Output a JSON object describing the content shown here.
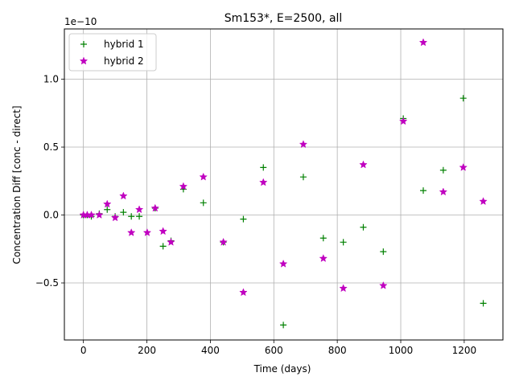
{
  "chart_data": {
    "type": "scatter",
    "title": "Sm153*, E=2500, all",
    "xlabel": "Time (days)",
    "ylabel": "Concentration Diff [conc - direct]",
    "y_scale_label": "1e−10",
    "xlim": [
      -60,
      1322
    ],
    "ylim": [
      -0.92,
      1.37
    ],
    "xticks": [
      0,
      200,
      400,
      600,
      800,
      1000,
      1200
    ],
    "xtick_labels": [
      "0",
      "200",
      "400",
      "600",
      "800",
      "1000",
      "1200"
    ],
    "yticks": [
      -0.5,
      0.0,
      0.5,
      1.0
    ],
    "ytick_labels": [
      "−0.5",
      "0.0",
      "0.5",
      "1.0"
    ],
    "grid": true,
    "legend_position": "upper-left",
    "series": [
      {
        "name": "hybrid 1",
        "marker": "plus",
        "color": "#008000",
        "points": [
          [
            0,
            0.0
          ],
          [
            12,
            0.0
          ],
          [
            25,
            -0.01
          ],
          [
            50,
            0.01
          ],
          [
            75,
            0.04
          ],
          [
            100,
            -0.01
          ],
          [
            126,
            0.02
          ],
          [
            151,
            -0.01
          ],
          [
            176,
            -0.01
          ],
          [
            226,
            0.05
          ],
          [
            251,
            -0.23
          ],
          [
            276,
            -0.19
          ],
          [
            315,
            0.19
          ],
          [
            378,
            0.09
          ],
          [
            441,
            -0.2
          ],
          [
            504,
            -0.03
          ],
          [
            567,
            0.35
          ],
          [
            630,
            -0.81
          ],
          [
            693,
            0.28
          ],
          [
            756,
            -0.17
          ],
          [
            819,
            -0.2
          ],
          [
            882,
            -0.09
          ],
          [
            945,
            -0.27
          ],
          [
            1008,
            0.71
          ],
          [
            1071,
            0.18
          ],
          [
            1134,
            0.33
          ],
          [
            1197,
            0.86
          ],
          [
            1260,
            -0.65
          ]
        ]
      },
      {
        "name": "hybrid 2",
        "marker": "star",
        "color": "#c000c0",
        "points": [
          [
            0,
            0.0
          ],
          [
            12,
            0.0
          ],
          [
            25,
            0.0
          ],
          [
            50,
            0.0
          ],
          [
            75,
            0.08
          ],
          [
            100,
            -0.02
          ],
          [
            126,
            0.14
          ],
          [
            151,
            -0.13
          ],
          [
            176,
            0.04
          ],
          [
            201,
            -0.13
          ],
          [
            226,
            0.05
          ],
          [
            251,
            -0.12
          ],
          [
            276,
            -0.2
          ],
          [
            315,
            0.21
          ],
          [
            378,
            0.28
          ],
          [
            441,
            -0.2
          ],
          [
            504,
            -0.57
          ],
          [
            567,
            0.24
          ],
          [
            630,
            -0.36
          ],
          [
            693,
            0.52
          ],
          [
            756,
            -0.32
          ],
          [
            819,
            -0.54
          ],
          [
            882,
            0.37
          ],
          [
            945,
            -0.52
          ],
          [
            1008,
            0.69
          ],
          [
            1071,
            1.27
          ],
          [
            1134,
            0.17
          ],
          [
            1197,
            0.35
          ],
          [
            1260,
            0.1
          ]
        ]
      }
    ]
  }
}
